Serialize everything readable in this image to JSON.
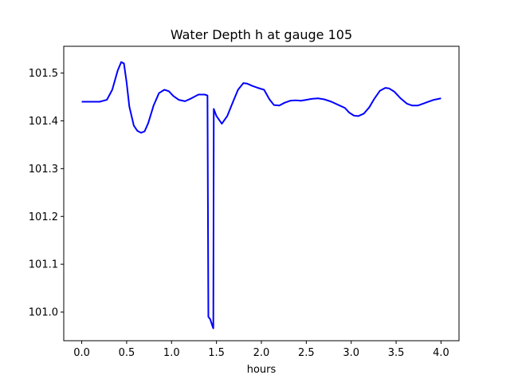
{
  "chart_data": {
    "type": "line",
    "title": "Water Depth h at gauge 105",
    "xlabel": "hours",
    "ylabel": "",
    "xlim": [
      -0.2,
      4.2
    ],
    "ylim": [
      100.94,
      101.556
    ],
    "x_ticks": [
      "0.0",
      "0.5",
      "1.0",
      "1.5",
      "2.0",
      "2.5",
      "3.0",
      "3.5",
      "4.0"
    ],
    "y_ticks": [
      "101.0",
      "101.1",
      "101.2",
      "101.3",
      "101.4",
      "101.5"
    ],
    "grid": false,
    "legend": "none",
    "series": [
      {
        "color": "#0000ff",
        "x": [
          0.0,
          0.1,
          0.2,
          0.28,
          0.34,
          0.4,
          0.44,
          0.47,
          0.5,
          0.53,
          0.58,
          0.62,
          0.66,
          0.7,
          0.74,
          0.8,
          0.86,
          0.92,
          0.97,
          1.02,
          1.08,
          1.15,
          1.22,
          1.3,
          1.37,
          1.4,
          1.41,
          1.43,
          1.46,
          1.465,
          1.47,
          1.5,
          1.56,
          1.62,
          1.68,
          1.74,
          1.8,
          1.84,
          1.9,
          1.96,
          2.03,
          2.09,
          2.14,
          2.2,
          2.26,
          2.32,
          2.38,
          2.44,
          2.5,
          2.56,
          2.63,
          2.7,
          2.78,
          2.86,
          2.93,
          2.98,
          3.03,
          3.08,
          3.14,
          3.2,
          3.26,
          3.32,
          3.38,
          3.42,
          3.48,
          3.55,
          3.62,
          3.68,
          3.74,
          3.8,
          3.86,
          3.92,
          4.0
        ],
        "y": [
          101.44,
          101.44,
          101.44,
          101.444,
          101.465,
          101.505,
          101.523,
          101.52,
          101.48,
          101.43,
          101.39,
          101.379,
          101.375,
          101.378,
          101.395,
          101.432,
          101.458,
          101.465,
          101.462,
          101.452,
          101.444,
          101.441,
          101.447,
          101.455,
          101.455,
          101.453,
          100.99,
          100.985,
          100.968,
          100.966,
          101.425,
          101.41,
          101.394,
          101.41,
          101.438,
          101.465,
          101.479,
          101.478,
          101.473,
          101.469,
          101.465,
          101.445,
          101.433,
          101.432,
          101.438,
          101.442,
          101.443,
          101.442,
          101.444,
          101.446,
          101.447,
          101.445,
          101.44,
          101.433,
          101.427,
          101.417,
          101.411,
          101.41,
          101.415,
          101.428,
          101.447,
          101.463,
          101.469,
          101.468,
          101.461,
          101.447,
          101.436,
          101.432,
          101.432,
          101.436,
          101.44,
          101.444,
          101.447
        ]
      }
    ]
  }
}
